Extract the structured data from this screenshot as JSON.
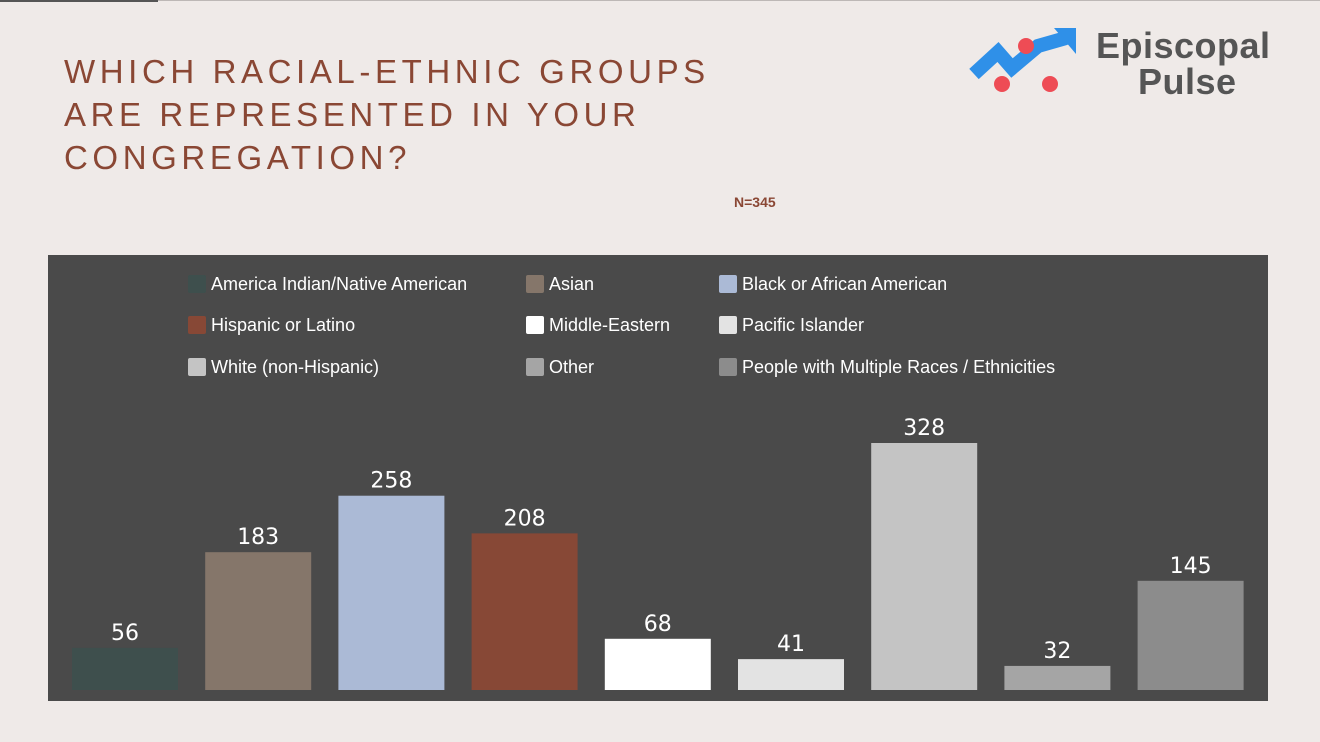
{
  "title": "WHICH RACIAL-ETHNIC GROUPS ARE REPRESENTED IN YOUR CONGREGATION?",
  "n_label": "N=345",
  "logo": {
    "line1": "Episcopal",
    "line2": "Pulse",
    "arrow_color": "#2f90e8",
    "dot_color": "#ee4c55"
  },
  "chart_data": {
    "type": "bar",
    "categories": [
      "America Indian/Native American",
      "Asian",
      "Black or African American",
      "Hispanic or Latino",
      "Middle-Eastern",
      "Pacific Islander",
      "White (non-Hispanic)",
      "Other",
      "People with Multiple Races / Ethnicities"
    ],
    "values": [
      56,
      183,
      258,
      208,
      68,
      41,
      328,
      32,
      145
    ],
    "colors": [
      "#3e4f4d",
      "#85766a",
      "#abbad6",
      "#874836",
      "#ffffff",
      "#e3e3e3",
      "#c4c4c4",
      "#a5a5a5",
      "#8c8c8c"
    ],
    "legend_position": "top",
    "background": "#4a4a4a",
    "grid": false
  }
}
